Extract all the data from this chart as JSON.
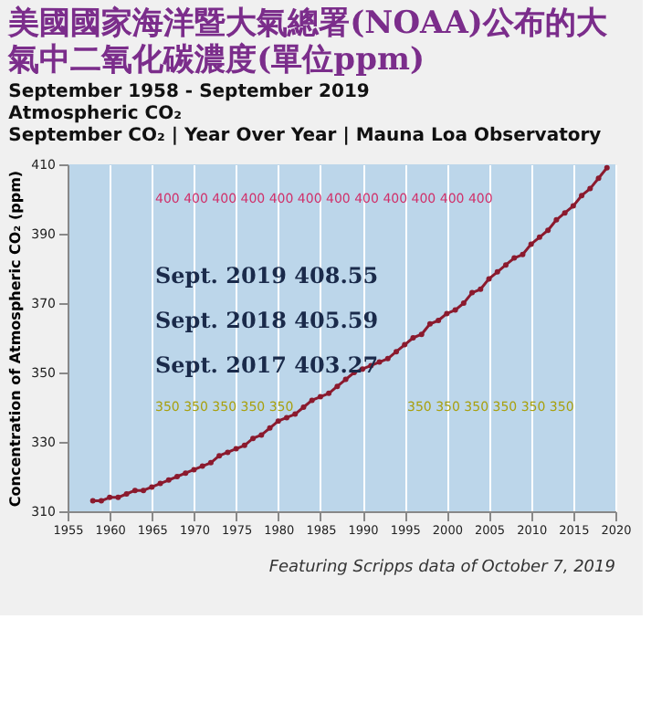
{
  "chart_data": {
    "type": "line",
    "title": "美國國家海洋暨大氣總署(NOAA)公布的大氣中二氧化碳濃度(單位ppm)",
    "subtitle": [
      "September 1958 - September 2019",
      "Atmospheric CO₂",
      "September CO₂ | Year Over Year | Mauna Loa Observatory"
    ],
    "ylabel": "Concentration of Atmospheric CO₂ (ppm)",
    "x": [
      1958,
      1959,
      1960,
      1961,
      1962,
      1963,
      1964,
      1965,
      1966,
      1967,
      1968,
      1969,
      1970,
      1971,
      1972,
      1973,
      1974,
      1975,
      1976,
      1977,
      1978,
      1979,
      1980,
      1981,
      1982,
      1983,
      1984,
      1985,
      1986,
      1987,
      1988,
      1989,
      1990,
      1991,
      1992,
      1993,
      1994,
      1995,
      1996,
      1997,
      1998,
      1999,
      2000,
      2001,
      2002,
      2003,
      2004,
      2005,
      2006,
      2007,
      2008,
      2009,
      2010,
      2011,
      2012,
      2013,
      2014,
      2015,
      2016,
      2017,
      2018,
      2019
    ],
    "series": [
      {
        "color": "#8b1a2e",
        "values": [
          313,
          313,
          314,
          314,
          315,
          316,
          316,
          317,
          318,
          319,
          320,
          321,
          322,
          323,
          324,
          326,
          327,
          328,
          329,
          331,
          332,
          334,
          336,
          337,
          338,
          340,
          342,
          343,
          344,
          346,
          348,
          350,
          351,
          352,
          353,
          354,
          356,
          358,
          360,
          361,
          364,
          365,
          367,
          368,
          370,
          373,
          374,
          377,
          379,
          381,
          383,
          384,
          387,
          389,
          391,
          394,
          396,
          398,
          401,
          403,
          406,
          409
        ]
      }
    ],
    "xlim": [
      1955,
      2020
    ],
    "xticks": [
      1955,
      1960,
      1965,
      1970,
      1975,
      1980,
      1985,
      1990,
      1995,
      2000,
      2005,
      2010,
      2015,
      2020
    ],
    "ylim": [
      310,
      410
    ],
    "yticks": [
      310,
      330,
      350,
      370,
      390,
      410
    ],
    "grid": "x",
    "marker": "circle",
    "line_style": "solid",
    "annotations": [
      "Sept. 2019  408.55",
      "Sept. 2018  405.59",
      "Sept. 2017  403.27",
      "400 400 400 400 400 400 400 400 400 400 400 400",
      "350 350 350 350 350",
      "350 350 350 350 350 350",
      "Featuring Scripps data of October 7, 2019"
    ]
  }
}
